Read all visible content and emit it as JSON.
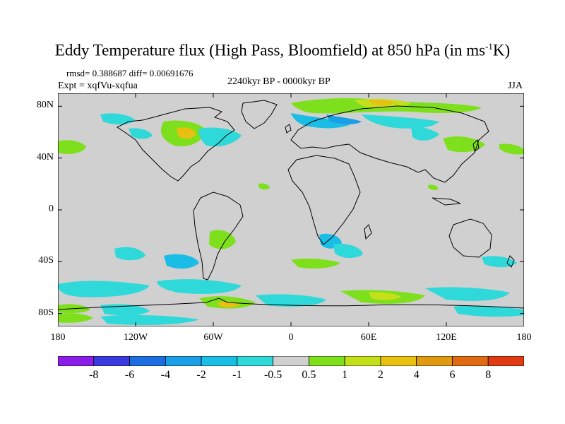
{
  "title": {
    "main": "Eddy Temperature flux (High Pass, Bloomfield) at 850 hPa (in ms",
    "sup": "-1",
    "tail": "K)"
  },
  "stats": "rmsd= 0.388687 diff= 0.00691676",
  "experiment": "Expt = xqfVu-xqfua",
  "period": "2240kyr BP - 0000kyr BP",
  "season": "JJA",
  "axes": {
    "x_ticks": [
      "180",
      "120W",
      "60W",
      "0",
      "60E",
      "120E",
      "180"
    ],
    "y_ticks": [
      "80N",
      "40N",
      "0",
      "40S",
      "80S"
    ],
    "lon_range": [
      -180,
      180
    ],
    "lat_range": [
      -90,
      90
    ]
  },
  "colorbar": {
    "labels": [
      "-8",
      "-6",
      "-4",
      "-2",
      "-1",
      "-0.5",
      "0.5",
      "1",
      "2",
      "4",
      "6",
      "8"
    ],
    "colors": [
      "#8a1ee8",
      "#3a3adf",
      "#1d6ee0",
      "#1a9ee6",
      "#19bde6",
      "#2fd9d9",
      "#d0d0d0",
      "#7ee01c",
      "#c4e01a",
      "#e8c011",
      "#e09a12",
      "#e06a12",
      "#e03a12"
    ]
  },
  "colors": {
    "land_background": "#d0d0d0",
    "coastline": "#000000"
  }
}
